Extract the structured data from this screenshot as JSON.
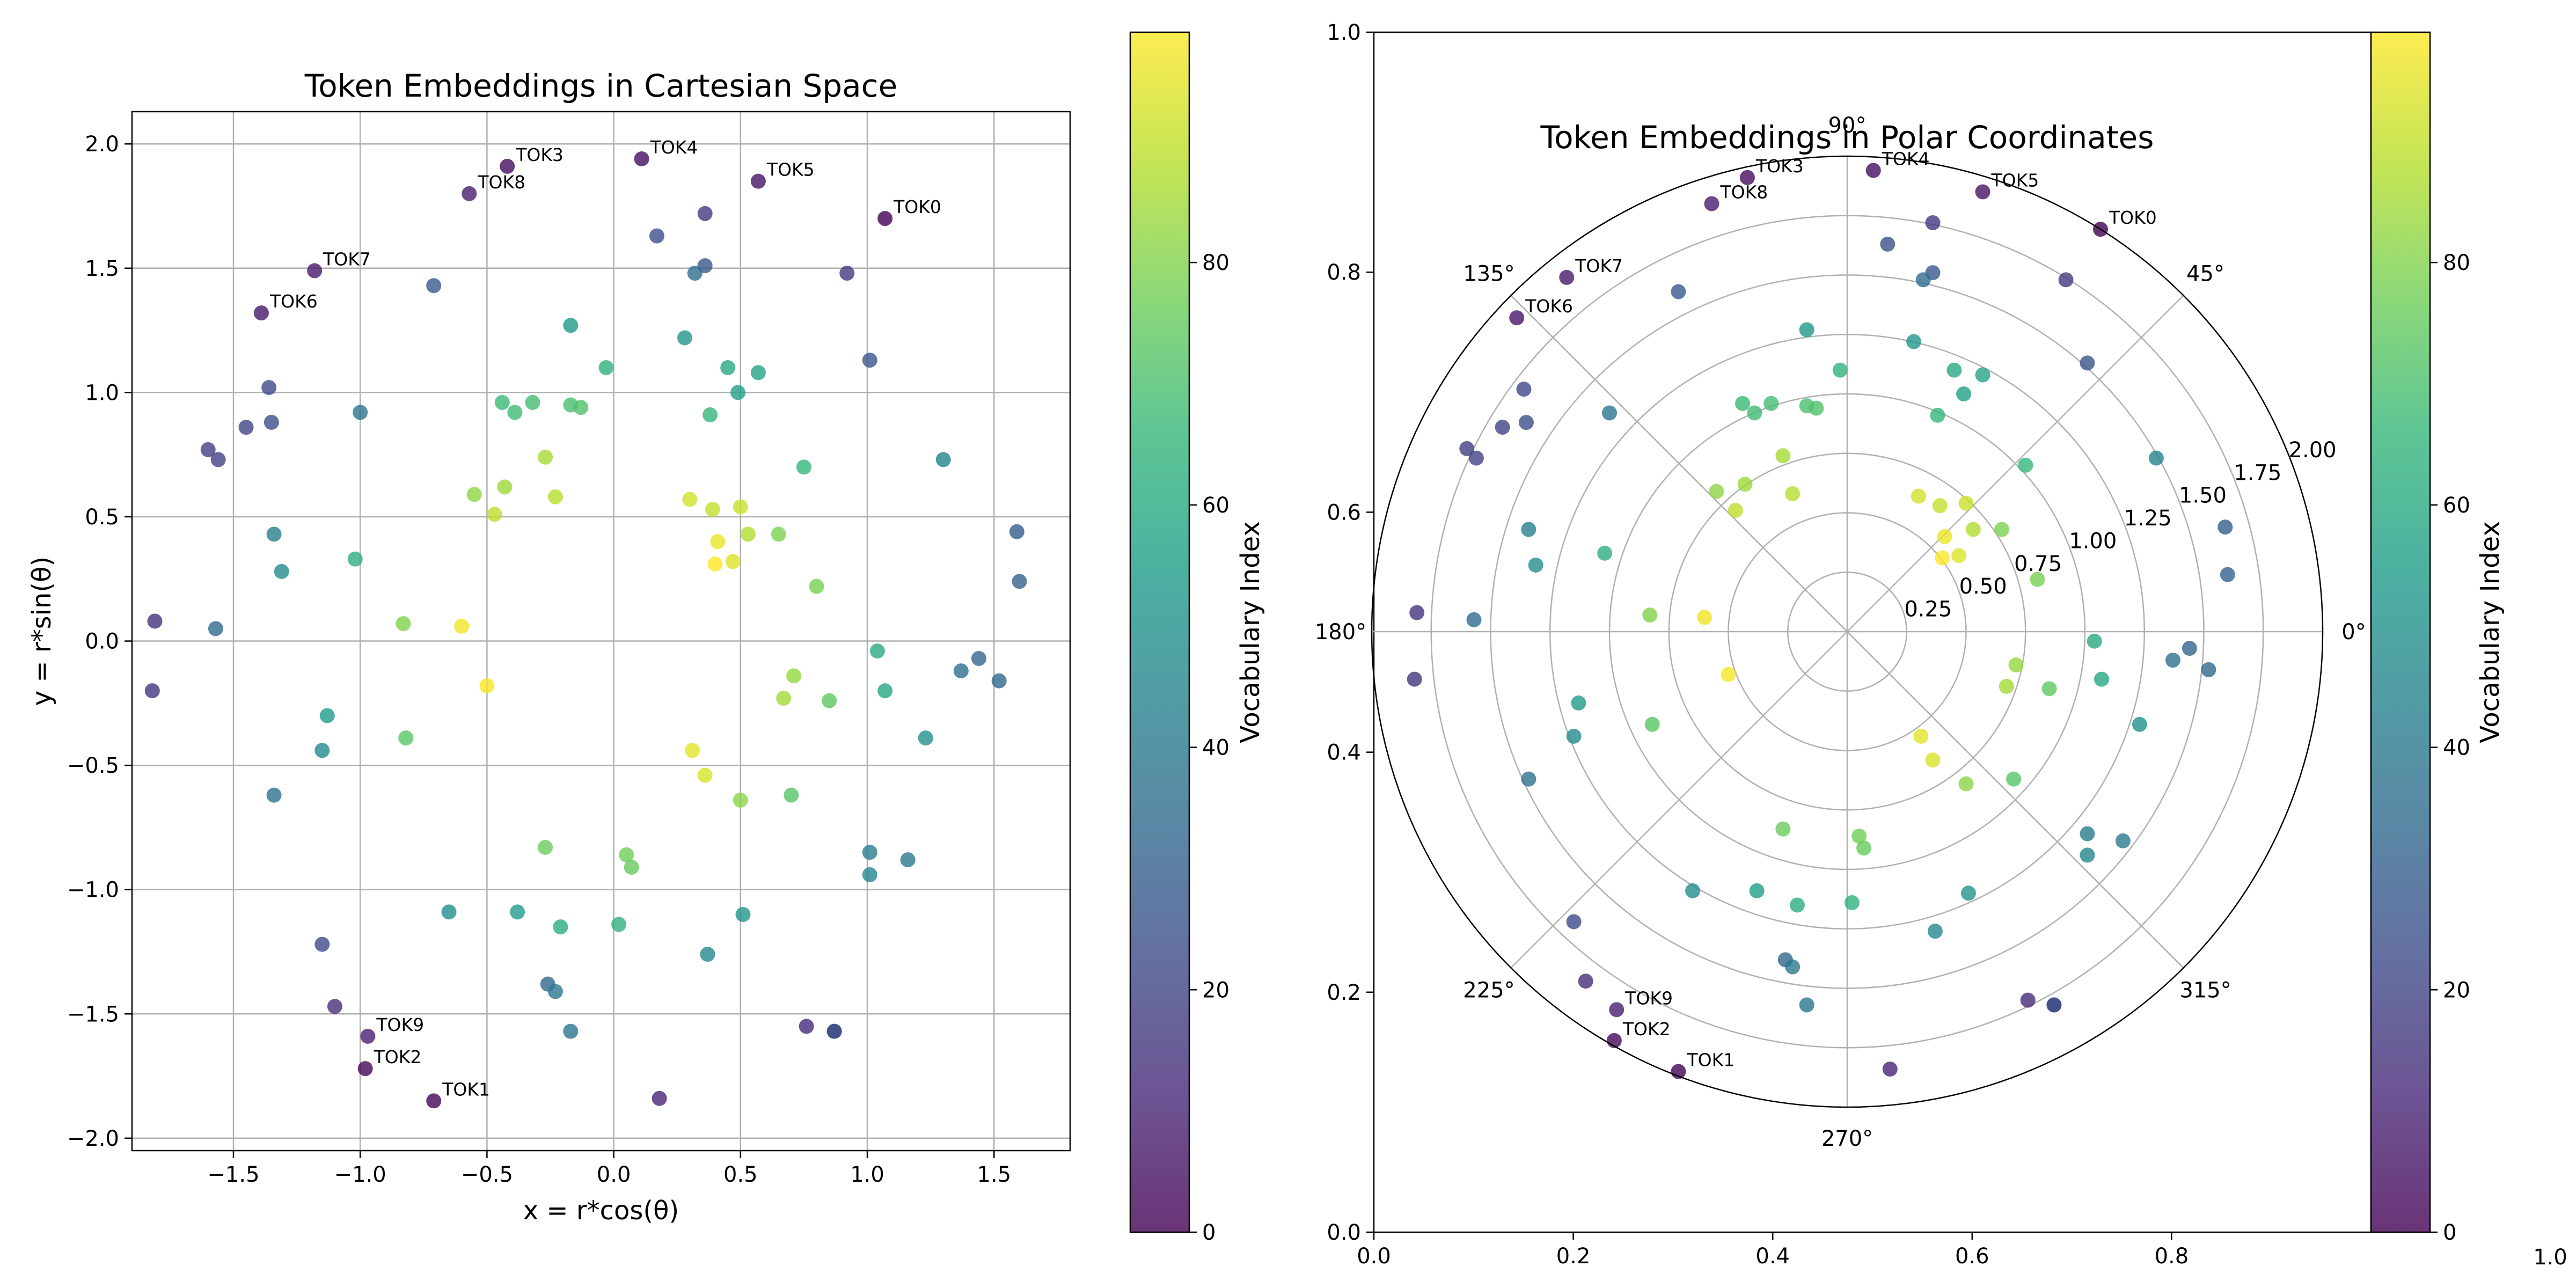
{
  "chart_data": [
    {
      "type": "scatter",
      "title": "Token Embeddings in Cartesian Space",
      "xlabel": "x = r*cos(θ)",
      "ylabel": "y = r*sin(θ)",
      "xlim": [
        -1.9,
        1.8
      ],
      "ylim": [
        -2.05,
        2.13
      ],
      "xticks": [
        -1.5,
        -1.0,
        -0.5,
        0.0,
        0.5,
        1.0,
        1.5
      ],
      "xtick_labels": [
        "−1.5",
        "−1.0",
        "−0.5",
        "0.0",
        "0.5",
        "1.0",
        "1.5"
      ],
      "yticks": [
        -2.0,
        -1.5,
        -1.0,
        -0.5,
        0.0,
        0.5,
        1.0,
        1.5,
        2.0
      ],
      "ytick_labels": [
        "−2.0",
        "−1.5",
        "−1.0",
        "−0.5",
        "0.0",
        "0.5",
        "1.0",
        "1.5",
        "2.0"
      ],
      "grid": true,
      "colormap": "viridis",
      "color_by": "vocabulary index",
      "colorbar": {
        "label": "Vocabulary Index",
        "range": [
          0,
          99
        ],
        "ticks": [
          0,
          20,
          40,
          60,
          80
        ],
        "tick_labels": [
          "0",
          "20",
          "40",
          "60",
          "80"
        ]
      },
      "points": [
        {
          "x": 1.07,
          "y": 1.7,
          "c": 0,
          "label": "TOK0"
        },
        {
          "x": -0.71,
          "y": -1.85,
          "c": 1,
          "label": "TOK1"
        },
        {
          "x": -0.98,
          "y": -1.72,
          "c": 2,
          "label": "TOK2"
        },
        {
          "x": -0.42,
          "y": 1.91,
          "c": 3,
          "label": "TOK3"
        },
        {
          "x": 0.11,
          "y": 1.94,
          "c": 4,
          "label": "TOK4"
        },
        {
          "x": 0.57,
          "y": 1.85,
          "c": 5,
          "label": "TOK5"
        },
        {
          "x": -1.39,
          "y": 1.32,
          "c": 6,
          "label": "TOK6"
        },
        {
          "x": -1.18,
          "y": 1.49,
          "c": 7,
          "label": "TOK7"
        },
        {
          "x": -0.57,
          "y": 1.8,
          "c": 8,
          "label": "TOK8"
        },
        {
          "x": -0.97,
          "y": -1.59,
          "c": 9,
          "label": "TOK9"
        },
        {
          "x": 0.18,
          "y": -1.84,
          "c": 10
        },
        {
          "x": 0.87,
          "y": -1.57,
          "c": 11
        },
        {
          "x": 0.76,
          "y": -1.55,
          "c": 12
        },
        {
          "x": -1.1,
          "y": -1.47,
          "c": 13
        },
        {
          "x": -1.81,
          "y": 0.08,
          "c": 14
        },
        {
          "x": -1.82,
          "y": -0.2,
          "c": 15
        },
        {
          "x": 0.36,
          "y": 1.72,
          "c": 16
        },
        {
          "x": 0.92,
          "y": 1.48,
          "c": 17
        },
        {
          "x": -1.6,
          "y": 0.77,
          "c": 18
        },
        {
          "x": -1.56,
          "y": 0.73,
          "c": 19
        },
        {
          "x": -1.45,
          "y": 0.86,
          "c": 20
        },
        {
          "x": -1.36,
          "y": 1.02,
          "c": 21
        },
        {
          "x": -1.15,
          "y": -1.22,
          "c": 22
        },
        {
          "x": 0.17,
          "y": 1.63,
          "c": 23
        },
        {
          "x": -1.35,
          "y": 0.88,
          "c": 24
        },
        {
          "x": 0.87,
          "y": -1.57,
          "c": 25
        },
        {
          "x": 1.01,
          "y": 1.13,
          "c": 26
        },
        {
          "x": 0.36,
          "y": 1.51,
          "c": 27
        },
        {
          "x": -0.71,
          "y": 1.43,
          "c": 28
        },
        {
          "x": 1.59,
          "y": 0.44,
          "c": 29
        },
        {
          "x": 1.6,
          "y": 0.24,
          "c": 30
        },
        {
          "x": 1.44,
          "y": -0.07,
          "c": 31
        },
        {
          "x": -0.26,
          "y": -1.38,
          "c": 32
        },
        {
          "x": 1.52,
          "y": -0.16,
          "c": 33
        },
        {
          "x": -1.57,
          "y": 0.05,
          "c": 34
        },
        {
          "x": 0.32,
          "y": 1.48,
          "c": 35
        },
        {
          "x": 1.37,
          "y": -0.12,
          "c": 36
        },
        {
          "x": -1.34,
          "y": -0.62,
          "c": 37
        },
        {
          "x": -1.0,
          "y": 0.92,
          "c": 38
        },
        {
          "x": -0.17,
          "y": -1.57,
          "c": 39
        },
        {
          "x": -0.23,
          "y": -1.41,
          "c": 40
        },
        {
          "x": 1.16,
          "y": -0.88,
          "c": 41
        },
        {
          "x": 1.01,
          "y": -0.85,
          "c": 42
        },
        {
          "x": -1.34,
          "y": 0.43,
          "c": 43
        },
        {
          "x": 1.3,
          "y": 0.73,
          "c": 44
        },
        {
          "x": 1.01,
          "y": -0.94,
          "c": 45
        },
        {
          "x": 0.37,
          "y": -1.26,
          "c": 46
        },
        {
          "x": -1.15,
          "y": -0.44,
          "c": 47
        },
        {
          "x": -1.31,
          "y": 0.28,
          "c": 48
        },
        {
          "x": -0.65,
          "y": -1.09,
          "c": 49
        },
        {
          "x": 1.23,
          "y": -0.39,
          "c": 50
        },
        {
          "x": 0.51,
          "y": -1.1,
          "c": 51
        },
        {
          "x": 0.28,
          "y": 1.22,
          "c": 52
        },
        {
          "x": -0.17,
          "y": 1.27,
          "c": 53
        },
        {
          "x": -1.13,
          "y": -0.3,
          "c": 54
        },
        {
          "x": -0.38,
          "y": -1.09,
          "c": 55
        },
        {
          "x": 0.49,
          "y": 1.0,
          "c": 56
        },
        {
          "x": 0.57,
          "y": 1.08,
          "c": 57
        },
        {
          "x": 1.07,
          "y": -0.2,
          "c": 58
        },
        {
          "x": 0.45,
          "y": 1.1,
          "c": 59
        },
        {
          "x": 1.04,
          "y": -0.04,
          "c": 60
        },
        {
          "x": -0.21,
          "y": -1.15,
          "c": 61
        },
        {
          "x": -1.02,
          "y": 0.33,
          "c": 62
        },
        {
          "x": 0.02,
          "y": -1.14,
          "c": 63
        },
        {
          "x": -0.03,
          "y": 1.1,
          "c": 64
        },
        {
          "x": 0.75,
          "y": 0.7,
          "c": 65
        },
        {
          "x": 0.38,
          "y": 0.91,
          "c": 66
        },
        {
          "x": -0.44,
          "y": 0.96,
          "c": 67
        },
        {
          "x": -0.39,
          "y": 0.92,
          "c": 68
        },
        {
          "x": -0.32,
          "y": 0.96,
          "c": 69
        },
        {
          "x": -0.17,
          "y": 0.95,
          "c": 70
        },
        {
          "x": -0.13,
          "y": 0.94,
          "c": 71
        },
        {
          "x": 0.7,
          "y": -0.62,
          "c": 72
        },
        {
          "x": -0.82,
          "y": -0.39,
          "c": 73
        },
        {
          "x": 0.85,
          "y": -0.24,
          "c": 74
        },
        {
          "x": 0.07,
          "y": -0.91,
          "c": 75
        },
        {
          "x": -0.27,
          "y": -0.83,
          "c": 76
        },
        {
          "x": 0.05,
          "y": -0.86,
          "c": 77
        },
        {
          "x": 0.8,
          "y": 0.22,
          "c": 78
        },
        {
          "x": 0.65,
          "y": 0.43,
          "c": 79
        },
        {
          "x": -0.83,
          "y": 0.07,
          "c": 80
        },
        {
          "x": 0.5,
          "y": -0.64,
          "c": 81
        },
        {
          "x": -0.55,
          "y": 0.59,
          "c": 82
        },
        {
          "x": 0.71,
          "y": -0.14,
          "c": 83
        },
        {
          "x": -0.43,
          "y": 0.62,
          "c": 84
        },
        {
          "x": 0.67,
          "y": -0.23,
          "c": 85
        },
        {
          "x": -0.27,
          "y": 0.74,
          "c": 86
        },
        {
          "x": 0.53,
          "y": 0.43,
          "c": 87
        },
        {
          "x": -0.23,
          "y": 0.58,
          "c": 88
        },
        {
          "x": -0.47,
          "y": 0.51,
          "c": 89
        },
        {
          "x": 0.39,
          "y": 0.53,
          "c": 90
        },
        {
          "x": 0.5,
          "y": 0.54,
          "c": 91
        },
        {
          "x": 0.3,
          "y": 0.57,
          "c": 92
        },
        {
          "x": 0.36,
          "y": -0.54,
          "c": 93
        },
        {
          "x": 0.47,
          "y": 0.32,
          "c": 94
        },
        {
          "x": 0.31,
          "y": -0.44,
          "c": 95
        },
        {
          "x": 0.41,
          "y": 0.4,
          "c": 96
        },
        {
          "x": -0.6,
          "y": 0.06,
          "c": 97
        },
        {
          "x": -0.5,
          "y": -0.18,
          "c": 98
        },
        {
          "x": 0.4,
          "y": 0.31,
          "c": 99
        }
      ]
    },
    {
      "type": "scatter",
      "projection": "polar",
      "title": "Token Embeddings in Polar Coordinates",
      "rlim": [
        0,
        2.0
      ],
      "rticks": [
        0.25,
        0.5,
        0.75,
        1.0,
        1.25,
        1.5,
        1.75,
        2.0
      ],
      "rtick_labels": [
        "0.25",
        "0.50",
        "0.75",
        "1.00",
        "1.25",
        "1.50",
        "1.75",
        "2.00"
      ],
      "theta_ticks_deg": [
        0,
        45,
        90,
        135,
        180,
        225,
        270,
        315
      ],
      "theta_tick_labels": [
        "0°",
        "45°",
        "90°",
        "135°",
        "180°",
        "225°",
        "270°",
        "315°"
      ],
      "background_axes": {
        "xlim": [
          0,
          1.0
        ],
        "ylim": [
          0,
          1.0
        ],
        "xticks": [
          0.0,
          0.2,
          0.4,
          0.6,
          0.8
        ],
        "xtick_labels": [
          "0.0",
          "0.2",
          "0.4",
          "0.6",
          "0.8"
        ],
        "yticks": [
          0.0,
          0.2,
          0.4,
          0.6,
          0.8,
          1.0
        ],
        "ytick_labels": [
          "0.0",
          "0.2",
          "0.4",
          "0.6",
          "0.8",
          "1.0"
        ],
        "extra_tick_labels": [
          "1.0"
        ]
      },
      "grid": true,
      "colormap": "viridis",
      "colorbar": {
        "label": "Vocabulary Index",
        "range": [
          0,
          99
        ],
        "ticks": [
          0,
          20,
          40,
          60,
          80
        ],
        "tick_labels": [
          "0",
          "20",
          "40",
          "60",
          "80"
        ]
      },
      "data_source": "same points as the Cartesian panel, plotted as angle θ = atan2(y, x) and radius r = √(x²+y²)"
    }
  ]
}
